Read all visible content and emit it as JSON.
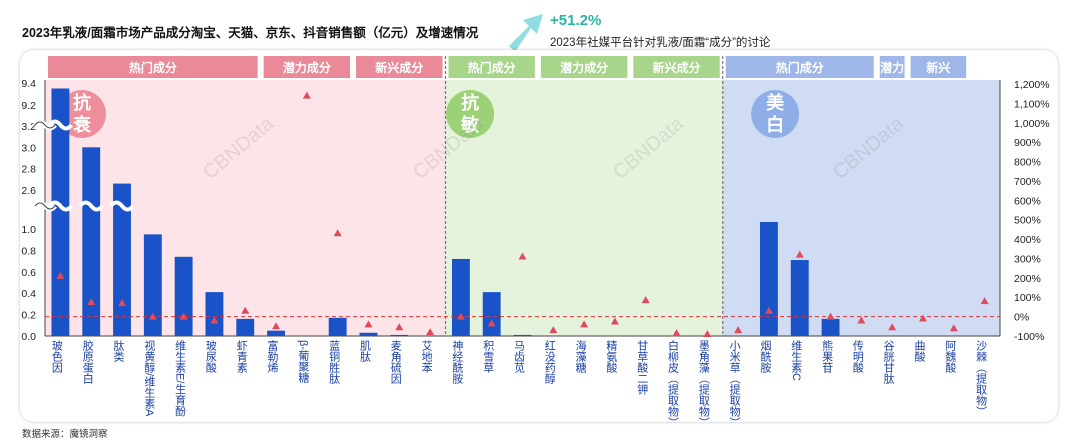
{
  "title": "2023年乳液/面霜市场产品成分淘宝、天猫、京东、抖音销售额（亿元）及增速情况",
  "highlight": {
    "value": "+51.2%",
    "label": "2023年社媒平台针对乳液/面霜“成分”的讨论"
  },
  "source": "数据来源：魔镜洞察",
  "watermark": "CBNData",
  "colors": {
    "bar": "#1a52c8",
    "marker": "#e04b5a",
    "pink_bg": "#fce4e8",
    "green_bg": "#e6f3dc",
    "blue_bg": "#cfdcf4",
    "pink_header": "#ea8a98",
    "green_header": "#a7d68a",
    "blue_header": "#9fb6e8"
  },
  "groups": [
    {
      "name": "抗衰",
      "circle_color": "#ee8e9a",
      "headers": [
        {
          "label": "热门成分",
          "from": 0,
          "to": 6
        },
        {
          "label": "潜力成分",
          "from": 7,
          "to": 9
        },
        {
          "label": "新兴成分",
          "from": 10,
          "to": 12
        }
      ]
    },
    {
      "name": "抗敏",
      "circle_color": "#9cd177",
      "headers": [
        {
          "label": "热门成分",
          "from": 13,
          "to": 15
        },
        {
          "label": "潜力成分",
          "from": 16,
          "to": 18
        },
        {
          "label": "新兴成分",
          "from": 19,
          "to": 21
        }
      ]
    },
    {
      "name": "美白",
      "circle_color": "#8faee8",
      "headers": [
        {
          "label": "热门成分",
          "from": 22,
          "to": 26
        },
        {
          "label": "潜力",
          "from": 27,
          "to": 27
        },
        {
          "label": "新兴",
          "from": 28,
          "to": 29
        }
      ]
    }
  ],
  "chart_data": {
    "type": "bar",
    "title": "2023年乳液/面霜市场产品成分淘宝、天猫、京东、抖音销售额（亿元）及增速情况",
    "categories": [
      "玻色因",
      "胶原蛋白",
      "肽类",
      "视黄醇/维生素A",
      "维生素E/生育酚",
      "玻尿酸",
      "虾青素",
      "富勒烯",
      "β-葡聚糖",
      "蓝铜胜肽",
      "肌肽",
      "麦角硫因",
      "艾地苯",
      "神经酰胺",
      "积雪草",
      "马齿苋",
      "红没药醇",
      "海藻糖",
      "精氨酸",
      "甘草酸二钾",
      "白柳皮（提取物）",
      "墨角藻（提取物）",
      "小米草（提取物）",
      "烟酰胺",
      "维生素C",
      "熊果苷",
      "传明酸",
      "谷胱甘肽",
      "曲酸",
      "阿魏酸",
      "沙棘（提取物）"
    ],
    "y_ticks_left": [
      "0.0",
      "0.2",
      "0.4",
      "0.6",
      "0.8",
      "1.0",
      "2.6",
      "2.8",
      "3.0",
      "3.2",
      "9.2",
      "9.4"
    ],
    "y_ticks_right": [
      "-100%",
      "0%",
      "100%",
      "200%",
      "300%",
      "400%",
      "500%",
      "600%",
      "700%",
      "800%",
      "900%",
      "1,000%",
      "1,100%",
      "1,200%"
    ],
    "series": [
      {
        "name": "销售额（亿元）",
        "values": [
          9.35,
          3.0,
          2.66,
          0.95,
          0.74,
          0.41,
          0.16,
          0.05,
          0.0,
          0.17,
          0.03,
          0.01,
          0.0,
          0.72,
          0.41,
          0.01,
          0.0,
          0.0,
          0.0,
          0.0,
          0.0,
          0.0,
          0.0,
          1.03,
          0.71,
          0.16,
          0.0,
          0.0,
          0.0,
          0.0,
          0.0
        ]
      },
      {
        "name": "增速",
        "values": [
          2.1,
          0.75,
          0.7,
          0.0,
          0.0,
          -0.2,
          0.3,
          -0.5,
          11.4,
          4.3,
          -0.4,
          -0.55,
          -0.8,
          0.0,
          -0.35,
          3.1,
          -0.7,
          -0.4,
          -0.25,
          0.85,
          -0.85,
          -0.9,
          -0.7,
          0.3,
          3.2,
          0.0,
          -0.2,
          -0.55,
          -0.1,
          -0.6,
          0.8
        ]
      }
    ],
    "reference_line": 0.0
  }
}
